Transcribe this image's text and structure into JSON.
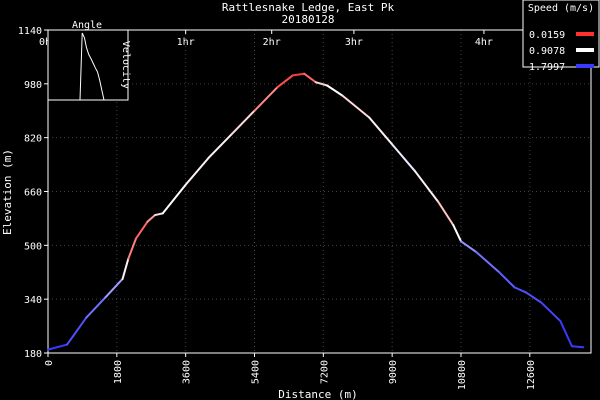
{
  "chart_data": {
    "type": "line",
    "title": "Rattlesnake Ledge, East Pk",
    "subtitle": "20180128",
    "xlabel": "Distance (m)",
    "ylabel": "Elevation (m)",
    "xlim": [
      0,
      14200
    ],
    "ylim": [
      180,
      1140
    ],
    "x_ticks": [
      0,
      1800,
      3600,
      5400,
      7200,
      9000,
      10800,
      12600
    ],
    "y_ticks": [
      180,
      340,
      500,
      660,
      820,
      980,
      1140
    ],
    "top_axis": {
      "labels": [
        "0hr",
        "1hr",
        "2hr",
        "3hr",
        "4hr"
      ],
      "positions_m": [
        0,
        3600,
        5850,
        8000,
        11400
      ]
    },
    "grid": true,
    "legend": {
      "title": "Speed (m/s)",
      "placement": "top-right",
      "entries": [
        {
          "label": "0.0159",
          "color": "#ff3030"
        },
        {
          "label": "0.9078",
          "color": "#ffffff"
        },
        {
          "label": "1.7997",
          "color": "#3a3aff"
        }
      ]
    },
    "inset": {
      "title": "Angle",
      "ylabel": "Velocity",
      "values": [
        0,
        1.0,
        0.93,
        0.78,
        0.68,
        0.62,
        0.55,
        0.48,
        0.42,
        0.3,
        0.15,
        0
      ]
    },
    "series": [
      {
        "points": [
          {
            "x": 0,
            "y": 190,
            "speed": 1.7997
          },
          {
            "x": 500,
            "y": 205,
            "speed": 1.7997
          },
          {
            "x": 1000,
            "y": 285,
            "speed": 1.6
          },
          {
            "x": 1500,
            "y": 345,
            "speed": 1.5
          },
          {
            "x": 1950,
            "y": 400,
            "speed": 1.2
          },
          {
            "x": 2100,
            "y": 460,
            "speed": 0.5
          },
          {
            "x": 2300,
            "y": 520,
            "speed": 0.2
          },
          {
            "x": 2600,
            "y": 570,
            "speed": 0.3
          },
          {
            "x": 2800,
            "y": 590,
            "speed": 0.6
          },
          {
            "x": 3000,
            "y": 595,
            "speed": 0.9
          },
          {
            "x": 3600,
            "y": 680,
            "speed": 0.9
          },
          {
            "x": 4200,
            "y": 760,
            "speed": 0.8
          },
          {
            "x": 4800,
            "y": 830,
            "speed": 0.9
          },
          {
            "x": 5400,
            "y": 900,
            "speed": 0.6
          },
          {
            "x": 6000,
            "y": 970,
            "speed": 0.2
          },
          {
            "x": 6400,
            "y": 1005,
            "speed": 0.1
          },
          {
            "x": 6700,
            "y": 1010,
            "speed": 0.0159
          },
          {
            "x": 7000,
            "y": 985,
            "speed": 0.5
          },
          {
            "x": 7300,
            "y": 975,
            "speed": 0.9
          },
          {
            "x": 7700,
            "y": 945,
            "speed": 0.9
          },
          {
            "x": 8400,
            "y": 880,
            "speed": 0.6
          },
          {
            "x": 9000,
            "y": 800,
            "speed": 1.1
          },
          {
            "x": 9600,
            "y": 720,
            "speed": 0.9
          },
          {
            "x": 10200,
            "y": 630,
            "speed": 0.8
          },
          {
            "x": 10600,
            "y": 560,
            "speed": 0.5
          },
          {
            "x": 10800,
            "y": 512,
            "speed": 1.3
          },
          {
            "x": 11200,
            "y": 480,
            "speed": 1.5
          },
          {
            "x": 11800,
            "y": 420,
            "speed": 1.6
          },
          {
            "x": 12200,
            "y": 375,
            "speed": 1.7
          },
          {
            "x": 12500,
            "y": 360,
            "speed": 1.7
          },
          {
            "x": 12900,
            "y": 330,
            "speed": 1.7
          },
          {
            "x": 13400,
            "y": 275,
            "speed": 1.7997
          },
          {
            "x": 13700,
            "y": 200,
            "speed": 1.7997
          },
          {
            "x": 14000,
            "y": 197,
            "speed": 1.7997
          }
        ]
      }
    ]
  }
}
